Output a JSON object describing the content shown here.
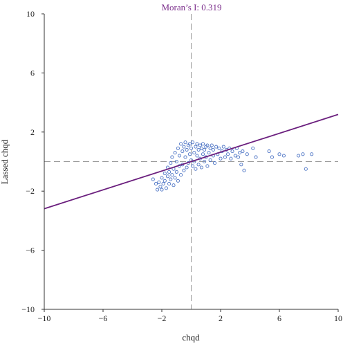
{
  "chart_data": {
    "type": "scatter",
    "title": "Moran’s I: 0.319",
    "xlabel": "chqd",
    "ylabel": "Lassed chqd",
    "xlim": [
      -10,
      10
    ],
    "ylim": [
      -10,
      10
    ],
    "x_ticks": [
      "−10",
      "−6",
      "−2",
      "2",
      "6",
      "10"
    ],
    "y_ticks": [
      "10",
      "6",
      "2",
      "−2",
      "−6",
      "−10"
    ],
    "grid": false,
    "reference_lines": {
      "x": 0,
      "y": 0,
      "style": "dashed"
    },
    "regression": {
      "slope": 0.319,
      "intercept": 0
    },
    "colors": {
      "points": "#4a72c4",
      "line": "#6b1f7e",
      "title": "#7a2c8a",
      "reference": "#9a9a9a"
    },
    "points": [
      [
        -2.6,
        -1.2
      ],
      [
        -2.4,
        -1.5
      ],
      [
        -2.3,
        -1.9
      ],
      [
        -2.2,
        -1.4
      ],
      [
        -2.1,
        -1.7
      ],
      [
        -2.0,
        -1.1
      ],
      [
        -2.0,
        -1.9
      ],
      [
        -1.9,
        -1.5
      ],
      [
        -1.8,
        -0.8
      ],
      [
        -1.8,
        -1.3
      ],
      [
        -1.7,
        -1.8
      ],
      [
        -1.6,
        -1.0
      ],
      [
        -1.6,
        -0.4
      ],
      [
        -1.5,
        -1.5
      ],
      [
        -1.5,
        -0.7
      ],
      [
        -1.4,
        -1.2
      ],
      [
        -1.4,
        -0.1
      ],
      [
        -1.3,
        -0.9
      ],
      [
        -1.3,
        0.3
      ],
      [
        -1.2,
        -1.6
      ],
      [
        -1.2,
        -0.5
      ],
      [
        -1.1,
        0.6
      ],
      [
        -1.1,
        -1.1
      ],
      [
        -1.0,
        0.0
      ],
      [
        -1.0,
        -0.7
      ],
      [
        -0.9,
        0.9
      ],
      [
        -0.9,
        -1.3
      ],
      [
        -0.8,
        0.4
      ],
      [
        -0.8,
        -0.3
      ],
      [
        -0.7,
        1.2
      ],
      [
        -0.7,
        -0.9
      ],
      [
        -0.6,
        0.7
      ],
      [
        -0.6,
        -0.2
      ],
      [
        -0.5,
        1.0
      ],
      [
        -0.5,
        -0.6
      ],
      [
        -0.4,
        0.3
      ],
      [
        -0.4,
        1.3
      ],
      [
        -0.3,
        -0.4
      ],
      [
        -0.3,
        0.8
      ],
      [
        -0.2,
        1.1
      ],
      [
        -0.2,
        -0.1
      ],
      [
        -0.1,
        0.5
      ],
      [
        -0.1,
        1.2
      ],
      [
        0.0,
        0.1
      ],
      [
        0.0,
        0.9
      ],
      [
        0.1,
        -0.3
      ],
      [
        0.1,
        1.3
      ],
      [
        0.2,
        0.6
      ],
      [
        0.2,
        0.0
      ],
      [
        0.3,
        1.0
      ],
      [
        0.3,
        -0.5
      ],
      [
        0.4,
        0.4
      ],
      [
        0.4,
        1.2
      ],
      [
        0.5,
        0.8
      ],
      [
        0.5,
        -0.2
      ],
      [
        0.6,
        1.1
      ],
      [
        0.6,
        0.2
      ],
      [
        0.7,
        0.9
      ],
      [
        0.7,
        -0.4
      ],
      [
        0.8,
        0.5
      ],
      [
        0.8,
        1.2
      ],
      [
        0.9,
        0.0
      ],
      [
        0.9,
        0.8
      ],
      [
        1.0,
        1.0
      ],
      [
        1.0,
        0.3
      ],
      [
        1.1,
        -0.3
      ],
      [
        1.1,
        1.1
      ],
      [
        1.2,
        0.6
      ],
      [
        1.3,
        0.9
      ],
      [
        1.3,
        0.1
      ],
      [
        1.4,
        1.1
      ],
      [
        1.5,
        0.4
      ],
      [
        1.5,
        0.8
      ],
      [
        1.6,
        -0.1
      ],
      [
        1.7,
        1.0
      ],
      [
        1.8,
        0.5
      ],
      [
        1.9,
        0.9
      ],
      [
        2.0,
        0.2
      ],
      [
        2.1,
        0.7
      ],
      [
        2.2,
        1.0
      ],
      [
        2.3,
        0.3
      ],
      [
        2.4,
        0.8
      ],
      [
        2.5,
        0.5
      ],
      [
        2.6,
        0.9
      ],
      [
        2.7,
        0.2
      ],
      [
        2.8,
        0.7
      ],
      [
        3.0,
        0.4
      ],
      [
        3.1,
        0.9
      ],
      [
        3.2,
        0.3
      ],
      [
        3.3,
        0.6
      ],
      [
        3.4,
        -0.2
      ],
      [
        3.5,
        0.7
      ],
      [
        3.6,
        -0.6
      ],
      [
        3.8,
        0.5
      ],
      [
        4.2,
        0.9
      ],
      [
        4.4,
        0.3
      ],
      [
        5.3,
        0.7
      ],
      [
        5.5,
        0.3
      ],
      [
        6.0,
        0.5
      ],
      [
        6.3,
        0.4
      ],
      [
        7.3,
        0.4
      ],
      [
        7.6,
        0.5
      ],
      [
        7.8,
        -0.5
      ],
      [
        8.2,
        0.5
      ]
    ]
  }
}
